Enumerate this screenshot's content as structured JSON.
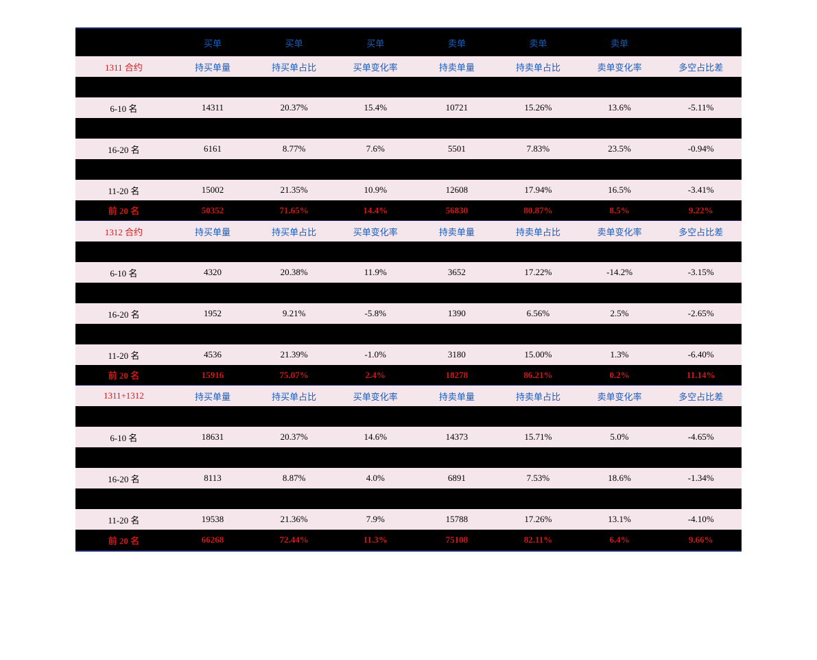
{
  "headers": {
    "buy": "买单",
    "sell": "卖单",
    "col_buy_vol": "持买单量",
    "col_buy_ratio": "持买单占比",
    "col_buy_change": "买单变化率",
    "col_sell_vol": "持卖单量",
    "col_sell_ratio": "持卖单占比",
    "col_sell_change": "卖单变化率",
    "col_diff": "多空占比差"
  },
  "sections": [
    {
      "title": "1311 合约",
      "rows": [
        {
          "label": "6-10 名",
          "v": [
            "14311",
            "20.37%",
            "15.4%",
            "10721",
            "15.26%",
            "13.6%",
            "-5.11%"
          ],
          "pink": true
        },
        {
          "label": "16-20 名",
          "v": [
            "6161",
            "8.77%",
            "7.6%",
            "5501",
            "7.83%",
            "23.5%",
            "-0.94%"
          ],
          "pink": true
        },
        {
          "label": "11-20 名",
          "v": [
            "15002",
            "21.35%",
            "10.9%",
            "12608",
            "17.94%",
            "16.5%",
            "-3.41%"
          ],
          "pink": true
        },
        {
          "label": "前 20 名",
          "v": [
            "50352",
            "71.65%",
            "14.4%",
            "56830",
            "80.87%",
            "8.5%",
            "9.22%"
          ],
          "summary": true
        }
      ]
    },
    {
      "title": "1312 合约",
      "rows": [
        {
          "label": "6-10 名",
          "v": [
            "4320",
            "20.38%",
            "11.9%",
            "3652",
            "17.22%",
            "-14.2%",
            "-3.15%"
          ],
          "pink": true
        },
        {
          "label": "16-20 名",
          "v": [
            "1952",
            "9.21%",
            "-5.8%",
            "1390",
            "6.56%",
            "2.5%",
            "-2.65%"
          ],
          "pink": true
        },
        {
          "label": "11-20 名",
          "v": [
            "4536",
            "21.39%",
            "-1.0%",
            "3180",
            "15.00%",
            "1.3%",
            "-6.40%"
          ],
          "pink": true
        },
        {
          "label": "前 20 名",
          "v": [
            "15916",
            "75.07%",
            "2.4%",
            "18278",
            "86.21%",
            "0.2%",
            "11.14%"
          ],
          "summary": true
        }
      ]
    },
    {
      "title": "1311+1312",
      "rows": [
        {
          "label": "6-10 名",
          "v": [
            "18631",
            "20.37%",
            "14.6%",
            "14373",
            "15.71%",
            "5.0%",
            "-4.65%"
          ],
          "pink": true
        },
        {
          "label": "16-20 名",
          "v": [
            "8113",
            "8.87%",
            "4.0%",
            "6891",
            "7.53%",
            "18.6%",
            "-1.34%"
          ],
          "pink": true
        },
        {
          "label": "11-20 名",
          "v": [
            "19538",
            "21.36%",
            "7.9%",
            "15788",
            "17.26%",
            "13.1%",
            "-4.10%"
          ],
          "pink": true
        },
        {
          "label": "前 20 名",
          "v": [
            "66268",
            "72.44%",
            "11.3%",
            "75108",
            "82.11%",
            "6.4%",
            "9.66%"
          ],
          "summary": true
        }
      ]
    }
  ]
}
